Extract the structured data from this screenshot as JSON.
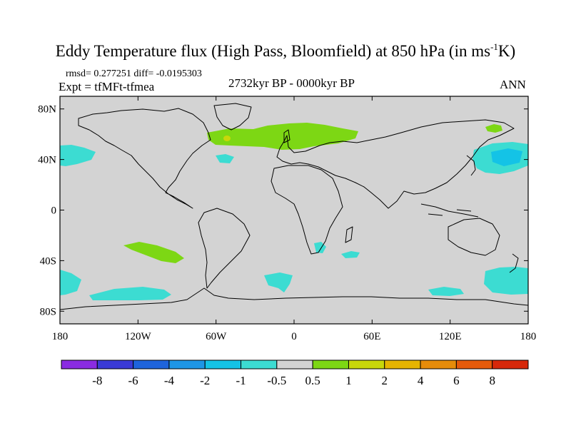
{
  "title": {
    "main": "Eddy Temperature flux (High Pass, Bloomfield) at 850 hPa (in ms",
    "exponent": "-1",
    "unit_end": "K)"
  },
  "stats": "rmsd= 0.277251 diff= -0.0195303",
  "experiment": "Expt = tfMFt-tfmea",
  "period": "2732kyr BP - 0000kyr BP",
  "season": "ANN",
  "map": {
    "background_color": "#d3d3d3",
    "lat_ticks": [
      {
        "label": "80N",
        "lat": 80
      },
      {
        "label": "40N",
        "lat": 40
      },
      {
        "label": "0",
        "lat": 0
      },
      {
        "label": "40S",
        "lat": -40
      },
      {
        "label": "80S",
        "lat": -80
      }
    ],
    "lon_ticks": [
      {
        "label": "180",
        "lon": -180
      },
      {
        "label": "120W",
        "lon": -120
      },
      {
        "label": "60W",
        "lon": -60
      },
      {
        "label": "0",
        "lon": 0
      },
      {
        "label": "60E",
        "lon": 60
      },
      {
        "label": "120E",
        "lon": 120
      },
      {
        "label": "180",
        "lon": 180
      }
    ]
  },
  "colorbar": {
    "colors": [
      "#8a2be2",
      "#3a3ad6",
      "#1e64dc",
      "#1e96e6",
      "#14c3e6",
      "#3cdcd2",
      "#d3d3d3",
      "#7dd714",
      "#c8d70a",
      "#e6b400",
      "#e68c0a",
      "#e65a0a",
      "#d7280a"
    ],
    "labels": [
      "-8",
      "-6",
      "-4",
      "-2",
      "-1",
      "-0.5",
      "0.5",
      "1",
      "2",
      "4",
      "6",
      "8"
    ]
  }
}
